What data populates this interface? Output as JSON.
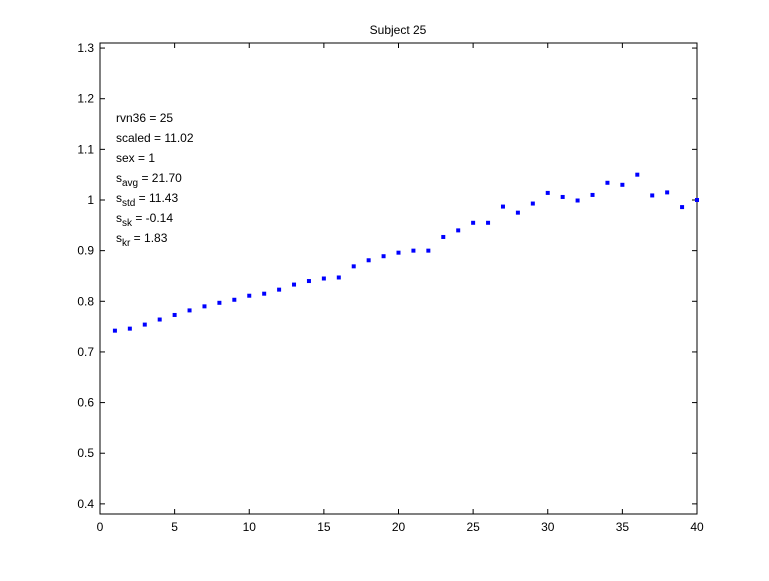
{
  "chart_data": {
    "type": "scatter",
    "title": "Subject 25",
    "xlabel": "",
    "ylabel": "",
    "xlim": [
      0,
      40
    ],
    "ylim": [
      0.38,
      1.31
    ],
    "xticks": [
      0,
      5,
      10,
      15,
      20,
      25,
      30,
      35,
      40
    ],
    "yticks": [
      0.4,
      0.5,
      0.6,
      0.7,
      0.8,
      0.9,
      1,
      1.1,
      1.2,
      1.3
    ],
    "xtick_labels": [
      "0",
      "5",
      "10",
      "15",
      "20",
      "25",
      "30",
      "35",
      "40"
    ],
    "ytick_labels": [
      "0.4",
      "0.5",
      "0.6",
      "0.7",
      "0.8",
      "0.9",
      "1",
      "1.1",
      "1.2",
      "1.3"
    ],
    "grid": false,
    "marker_color": "#0000ff",
    "x": [
      1,
      2,
      3,
      4,
      5,
      6,
      7,
      8,
      9,
      10,
      11,
      12,
      13,
      14,
      15,
      16,
      17,
      18,
      19,
      20,
      21,
      22,
      23,
      24,
      25,
      26,
      27,
      28,
      29,
      30,
      31,
      32,
      33,
      34,
      35,
      36,
      37,
      38,
      39,
      40
    ],
    "y": [
      0.742,
      0.746,
      0.754,
      0.764,
      0.773,
      0.782,
      0.79,
      0.797,
      0.803,
      0.811,
      0.815,
      0.823,
      0.833,
      0.84,
      0.845,
      0.847,
      0.869,
      0.881,
      0.889,
      0.896,
      0.9,
      0.9,
      0.927,
      0.94,
      0.955,
      0.955,
      0.987,
      0.975,
      0.993,
      1.014,
      1.006,
      0.999,
      1.01,
      1.034,
      1.03,
      1.05,
      1.009,
      1.015,
      0.986,
      1.0
    ],
    "annotation": [
      {
        "base": "rvn36 = 25",
        "sub": "",
        "rest": ""
      },
      {
        "base": "scaled = 11.02",
        "sub": "",
        "rest": ""
      },
      {
        "base": "sex   = 1",
        "sub": "",
        "rest": ""
      },
      {
        "base": "s",
        "sub": "avg",
        "rest": " = 21.70"
      },
      {
        "base": "s",
        "sub": "std",
        "rest": " = 11.43"
      },
      {
        "base": "s",
        "sub": "sk",
        "rest": " = -0.14"
      },
      {
        "base": "s",
        "sub": "kr",
        "rest": " = 1.83"
      }
    ]
  }
}
